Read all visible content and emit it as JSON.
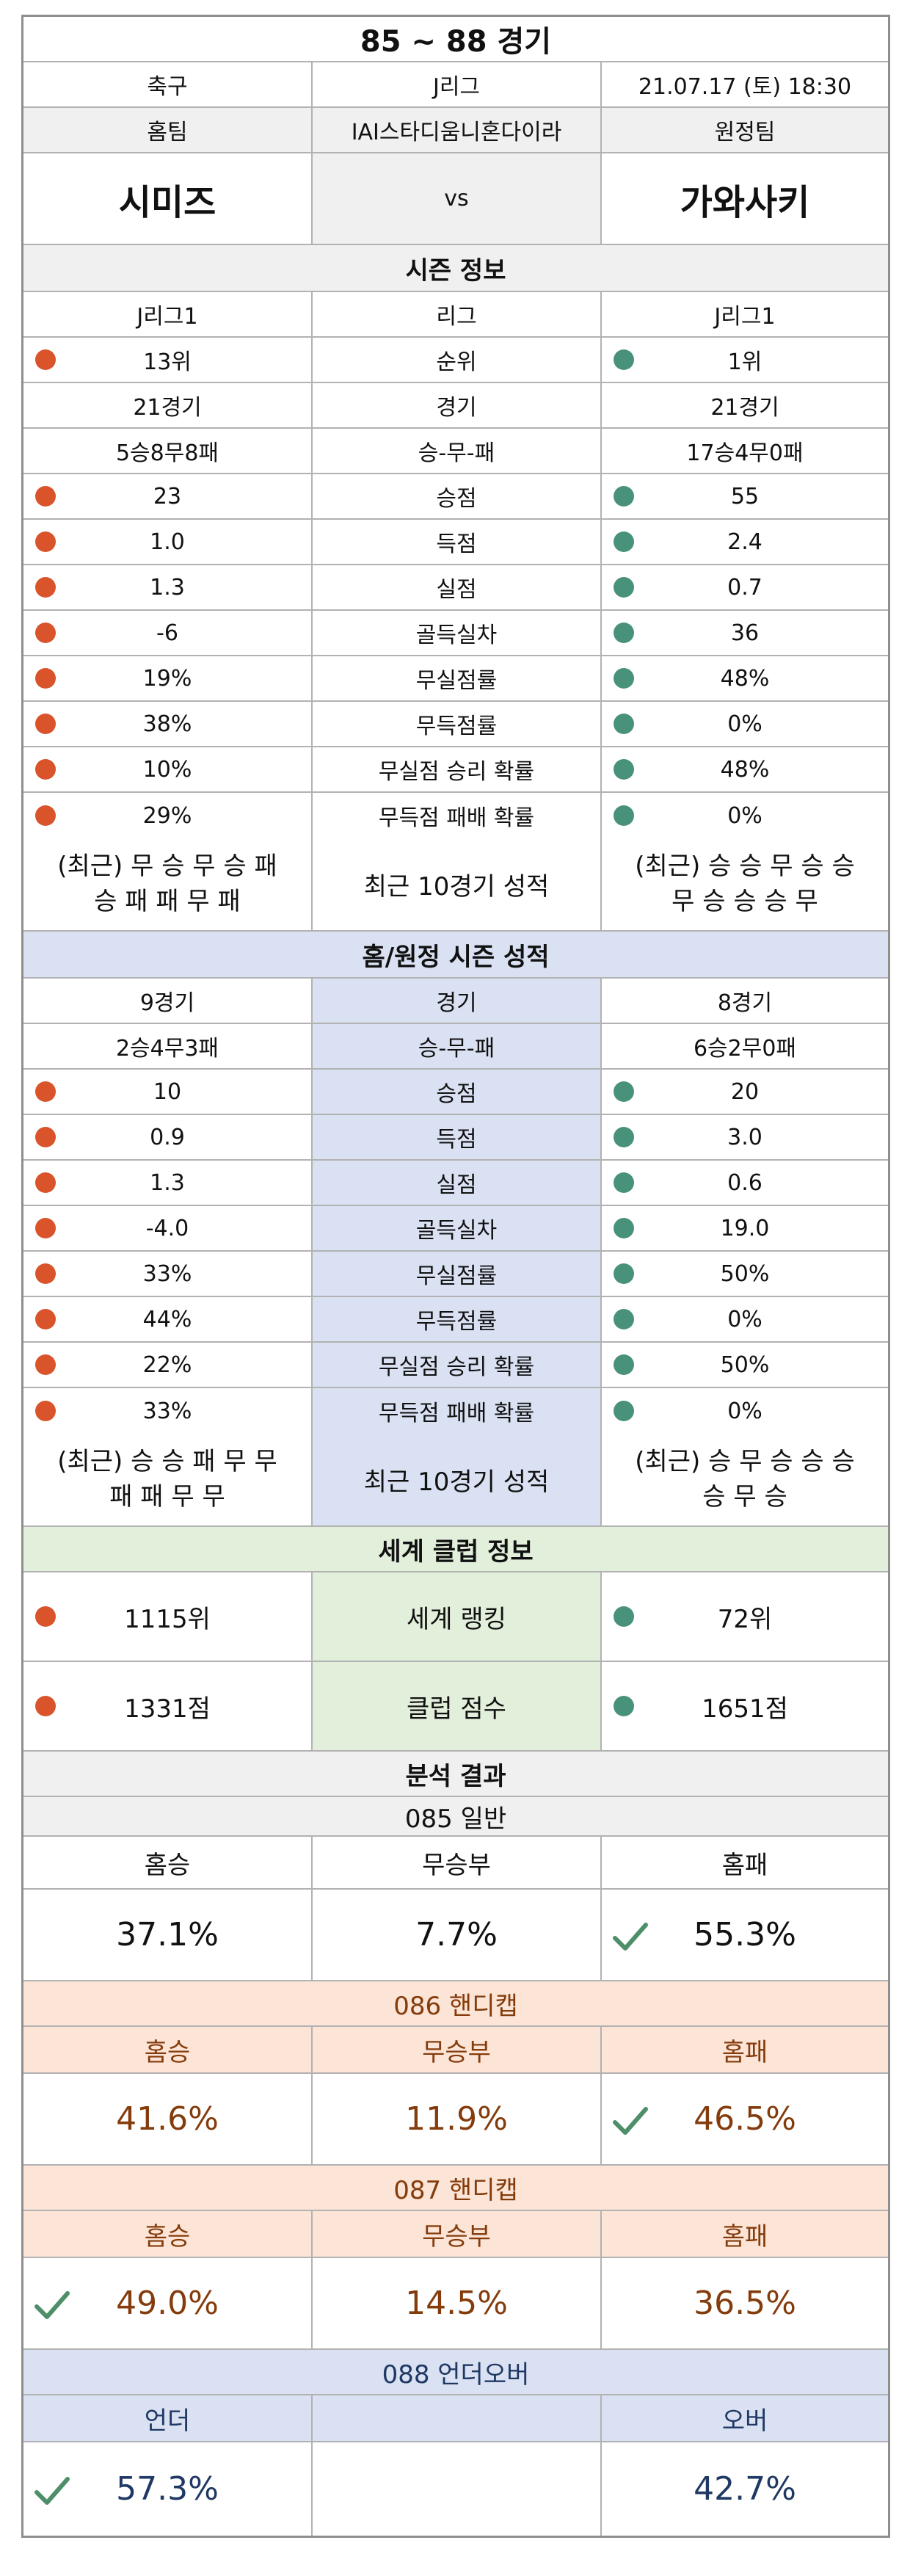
{
  "header": {
    "title": "85 ~ 88 경기",
    "sport": "축구",
    "league": "J리그",
    "datetime": "21.07.17 (토) 18:30",
    "home_label": "홈팀",
    "stadium": "IAI스타디움니혼다이라",
    "away_label": "원정팀",
    "home_team": "시미즈",
    "vs": "vs",
    "away_team": "가와사키"
  },
  "season": {
    "title": "시즌 정보",
    "rows": [
      {
        "home": "J리그1",
        "label": "리그",
        "away": "J리그1",
        "home_dot": "",
        "away_dot": ""
      },
      {
        "home": "13위",
        "label": "순위",
        "away": "1위",
        "home_dot": "red",
        "away_dot": "teal"
      },
      {
        "home": "21경기",
        "label": "경기",
        "away": "21경기",
        "home_dot": "",
        "away_dot": ""
      },
      {
        "home": "5승8무8패",
        "label": "승-무-패",
        "away": "17승4무0패",
        "home_dot": "",
        "away_dot": ""
      },
      {
        "home": "23",
        "label": "승점",
        "away": "55",
        "home_dot": "red",
        "away_dot": "teal"
      },
      {
        "home": "1.0",
        "label": "득점",
        "away": "2.4",
        "home_dot": "red",
        "away_dot": "teal"
      },
      {
        "home": "1.3",
        "label": "실점",
        "away": "0.7",
        "home_dot": "red",
        "away_dot": "teal"
      },
      {
        "home": "-6",
        "label": "골득실차",
        "away": "36",
        "home_dot": "red",
        "away_dot": "teal"
      },
      {
        "home": "19%",
        "label": "무실점률",
        "away": "48%",
        "home_dot": "red",
        "away_dot": "teal"
      },
      {
        "home": "38%",
        "label": "무득점률",
        "away": "0%",
        "home_dot": "red",
        "away_dot": "teal"
      },
      {
        "home": "10%",
        "label": "무실점 승리 확률",
        "away": "48%",
        "home_dot": "red",
        "away_dot": "teal"
      },
      {
        "home": "29%",
        "label": "무득점 패배 확률",
        "away": "0%",
        "home_dot": "red",
        "away_dot": "teal"
      }
    ],
    "recent": {
      "home_line1": "(최근) 무 승 무 승 패",
      "home_line2": "승 패 패 무 패",
      "label": "최근 10경기 성적",
      "away_line1": "(최근) 승 승 무 승 승",
      "away_line2": "무 승 승 승 무"
    }
  },
  "homeaway": {
    "title": "홈/원정 시즌 성적",
    "rows": [
      {
        "home": "9경기",
        "label": "경기",
        "away": "8경기",
        "home_dot": "",
        "away_dot": ""
      },
      {
        "home": "2승4무3패",
        "label": "승-무-패",
        "away": "6승2무0패",
        "home_dot": "",
        "away_dot": ""
      },
      {
        "home": "10",
        "label": "승점",
        "away": "20",
        "home_dot": "red",
        "away_dot": "teal"
      },
      {
        "home": "0.9",
        "label": "득점",
        "away": "3.0",
        "home_dot": "red",
        "away_dot": "teal"
      },
      {
        "home": "1.3",
        "label": "실점",
        "away": "0.6",
        "home_dot": "red",
        "away_dot": "teal"
      },
      {
        "home": "-4.0",
        "label": "골득실차",
        "away": "19.0",
        "home_dot": "red",
        "away_dot": "teal"
      },
      {
        "home": "33%",
        "label": "무실점률",
        "away": "50%",
        "home_dot": "red",
        "away_dot": "teal"
      },
      {
        "home": "44%",
        "label": "무득점률",
        "away": "0%",
        "home_dot": "red",
        "away_dot": "teal"
      },
      {
        "home": "22%",
        "label": "무실점 승리 확률",
        "away": "50%",
        "home_dot": "red",
        "away_dot": "teal"
      },
      {
        "home": "33%",
        "label": "무득점 패배 확률",
        "away": "0%",
        "home_dot": "red",
        "away_dot": "teal"
      }
    ],
    "recent": {
      "home_line1": "(최근) 승 승 패 무 무",
      "home_line2": "패 패 무 무",
      "label": "최근 10경기 성적",
      "away_line1": "(최근) 승 무 승 승 승",
      "away_line2": "승 무 승"
    }
  },
  "world": {
    "title": "세계 클럽 정보",
    "ranking": {
      "home": "1115위",
      "label": "세계 랭킹",
      "away": "72위"
    },
    "score": {
      "home": "1331점",
      "label": "클럽 점수",
      "away": "1651점"
    }
  },
  "analysis": {
    "title": "분석 결과",
    "general": {
      "title": "085 일반",
      "labels": [
        "홈승",
        "무승부",
        "홈패"
      ],
      "values": [
        "37.1%",
        "7.7%",
        "55.3%"
      ],
      "checked": 2
    },
    "handicap1": {
      "title": "086 핸디캡",
      "labels": [
        "홈승",
        "무승부",
        "홈패"
      ],
      "values": [
        "41.6%",
        "11.9%",
        "46.5%"
      ],
      "checked": 2
    },
    "handicap2": {
      "title": "087 핸디캡",
      "labels": [
        "홈승",
        "무승부",
        "홈패"
      ],
      "values": [
        "49.0%",
        "14.5%",
        "36.5%"
      ],
      "checked": 0
    },
    "underover": {
      "title": "088 언더오버",
      "labels": [
        "언더",
        "",
        "오버"
      ],
      "values": [
        "57.3%",
        "",
        "42.7%"
      ],
      "checked": 0
    }
  },
  "colors": {
    "home_dot": "#d9532b",
    "away_dot": "#48917b",
    "check": "#4e8f6a",
    "season_band": "#f0f0f0",
    "homeaway_band": "#d9e1f2",
    "world_band": "#e2efda",
    "handicap_band": "#fce4d6"
  }
}
